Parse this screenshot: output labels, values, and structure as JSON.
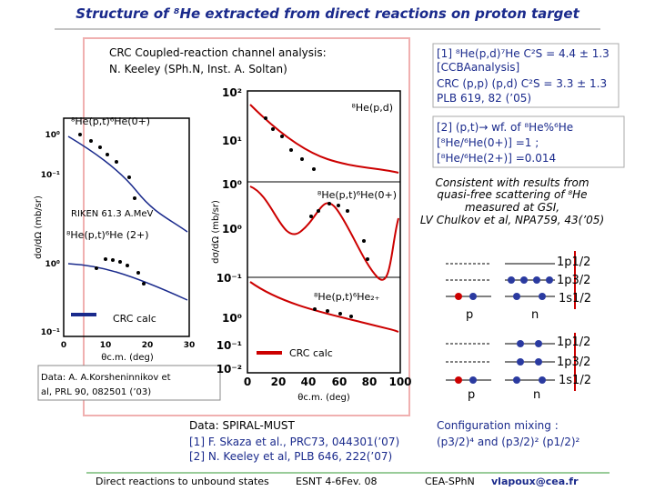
{
  "title": "Structure of ⁸He extracted from direct reactions on proton target",
  "crc_box": [
    "CRC Coupled-reaction channel analysis:",
    "N. Keeley (SPh.N, Inst. A. Soltan)"
  ],
  "left_plot": {
    "yticks": [
      "10⁰",
      "10⁻¹",
      "10⁰",
      "10⁻¹"
    ],
    "xticks": [
      "0",
      "10",
      "20",
      "30"
    ],
    "xlabel": "θc.m. (deg)",
    "ylabel": "dσ/dΩ (mb/sr)",
    "labels": [
      "⁸He(p,t)⁶He(0+)",
      "RIKEN 61.3 A.MeV",
      "⁸He(p,t)⁶He (2+)",
      "CRC calc"
    ],
    "data_note": [
      "Data: A. A.Korsheninnikov et",
      "al, PRL 90, 082501 (’03)"
    ]
  },
  "middle_plot": {
    "yticks": [
      "10²",
      "10¹",
      "10⁰",
      "10⁰",
      "10⁻¹",
      "10⁰",
      "10⁻¹",
      "10⁻²"
    ],
    "xticks": [
      "0",
      "20",
      "40",
      "60",
      "80",
      "100"
    ],
    "xlabel": "θc.m. (deg)",
    "ylabel": "dσ/dΩ (mb/sr)",
    "labels": [
      "⁸He(p,d)",
      "⁸He(p,t)⁶He(0+)",
      "⁸He(p,t)⁶He₂₊",
      "CRC calc"
    ]
  },
  "ref1": [
    "[1] ⁸He(p,d)⁷He C²S = 4.4 ± 1.3",
    "[CCBAanalysis]",
    "CRC (p,p) (p,d) C²S = 3.3 ± 1.3",
    "PLB 619, 82 (’05)"
  ],
  "ref2": [
    "[2] (p,t)→ wf. of ⁸He%⁶He",
    "[⁸He/⁶He(0+)] =1 ;",
    "[⁸He/⁶He(2+)] =0.014"
  ],
  "consistent": [
    "Consistent with results from",
    "quasi-free scattering of ⁸He",
    "measured at GSI,",
    "LV Chulkov et al, NPA759, 43(’05)"
  ],
  "diagrams": [
    {
      "levels": [
        "1p1/2",
        "1p3/2",
        "1s1/2"
      ],
      "p": "p",
      "n": "n"
    },
    {
      "levels": [
        "1p1/2",
        "1p3/2",
        "1s1/2"
      ],
      "p": "p",
      "n": "n"
    }
  ],
  "config": [
    "Configuration mixing :",
    "(p3/2)⁴ and (p3/2)² (p1/2)²"
  ],
  "data_refs": [
    "Data: SPIRAL-MUST",
    "[1] F. Skaza et al., PRC73, 044301(’07)",
    "[2] N. Keeley et al, PLB 646, 222(’07)"
  ],
  "footer": [
    "Direct reactions to unbound states",
    "ESNT 4-6Fev. 08",
    "CEA-SPhN",
    "vlapoux@cea.fr"
  ]
}
